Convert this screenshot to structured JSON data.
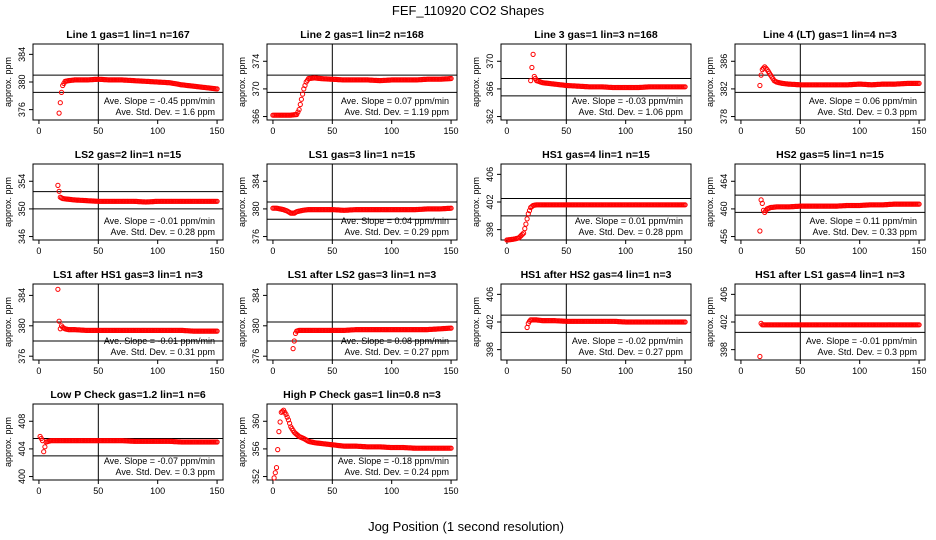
{
  "figure": {
    "title": "FEF_110920  CO2 Shapes",
    "xlabel": "Jog Position (1 second resolution)"
  },
  "colors": {
    "points": "#ff0000",
    "axes": "#000000"
  },
  "chart_data": [
    {
      "type": "scatter",
      "title": "Line 1 gas=1 lin=1 n=167",
      "ylabel": "approx. ppm",
      "xlim": [
        -5,
        155
      ],
      "ylim": [
        374.5,
        385.5
      ],
      "yticks": [
        376,
        380,
        384
      ],
      "xticks": [
        0,
        50,
        100,
        150
      ],
      "hlines": [
        378.5,
        381
      ],
      "vline": 50,
      "slope_text": "Ave. Slope = -0.45  ppm/min",
      "sd_text": "Ave. Std. Dev. = 1.6  ppm",
      "x": [
        17,
        18,
        19,
        20,
        22,
        25,
        30,
        40,
        50,
        60,
        70,
        80,
        90,
        100,
        110,
        120,
        130,
        140,
        150
      ],
      "y": [
        375.5,
        377,
        378.5,
        379.5,
        380.1,
        380.2,
        380.3,
        380.3,
        380.4,
        380.3,
        380.3,
        380.2,
        380.1,
        380.0,
        379.9,
        379.6,
        379.4,
        379.2,
        379.0
      ]
    },
    {
      "type": "scatter",
      "title": "Line 2 gas=1 lin=2 n=168",
      "ylabel": "approx. ppm",
      "xlim": [
        -5,
        155
      ],
      "ylim": [
        365.5,
        376.5
      ],
      "yticks": [
        366,
        370,
        374
      ],
      "xticks": [
        0,
        50,
        100,
        150
      ],
      "hlines": [
        369.5,
        372
      ],
      "vline": 50,
      "slope_text": "Ave. Slope = 0.07  ppm/min",
      "sd_text": "Ave. Std. Dev. = 1.19  ppm",
      "x": [
        0,
        5,
        10,
        15,
        20,
        22,
        24,
        26,
        28,
        30,
        35,
        40,
        50,
        60,
        70,
        80,
        90,
        100,
        110,
        120,
        130,
        140,
        150
      ],
      "y": [
        366.2,
        366.2,
        366.2,
        366.2,
        366.3,
        367,
        368.5,
        370,
        371,
        371.5,
        371.6,
        371.5,
        371.4,
        371.3,
        371.3,
        371.3,
        371.2,
        371.3,
        371.3,
        371.3,
        371.4,
        371.4,
        371.5
      ]
    },
    {
      "type": "scatter",
      "title": "Line 3 gas=1 lin=3 n=168",
      "ylabel": "approx. ppm",
      "xlim": [
        -5,
        155
      ],
      "ylim": [
        361.5,
        372.5
      ],
      "yticks": [
        362,
        366,
        370
      ],
      "xticks": [
        0,
        50,
        100,
        150
      ],
      "hlines": [
        365,
        367.5
      ],
      "vline": 50,
      "slope_text": "Ave. Slope = -0.03  ppm/min",
      "sd_text": "Ave. Std. Dev. = 1.06  ppm",
      "x": [
        20,
        22,
        23,
        25,
        30,
        40,
        50,
        60,
        70,
        80,
        90,
        100,
        110,
        120,
        130,
        140,
        150
      ],
      "y": [
        367.2,
        371,
        367.8,
        367.2,
        366.9,
        366.7,
        366.5,
        366.4,
        366.3,
        366.3,
        366.2,
        366.2,
        366.2,
        366.3,
        366.3,
        366.3,
        366.3
      ]
    },
    {
      "type": "scatter",
      "title": "Line 4 (LT) gas=1 lin=4 n=3",
      "ylabel": "approx. ppm",
      "xlim": [
        -5,
        155
      ],
      "ylim": [
        377.5,
        388.5
      ],
      "yticks": [
        378,
        382,
        386
      ],
      "xticks": [
        0,
        50,
        100,
        150
      ],
      "hlines": [
        381.5,
        384
      ],
      "vline": 50,
      "slope_text": "Ave. Slope = 0.06  ppm/min",
      "sd_text": "Ave. Std. Dev. = 0.3  ppm",
      "x": [
        16,
        17,
        18,
        20,
        22,
        25,
        28,
        30,
        35,
        40,
        50,
        60,
        70,
        80,
        90,
        100,
        110,
        120,
        130,
        140,
        150
      ],
      "y": [
        382.5,
        384,
        384.8,
        385.2,
        384.8,
        384,
        383.2,
        383,
        382.8,
        382.7,
        382.6,
        382.6,
        382.6,
        382.6,
        382.6,
        382.7,
        382.6,
        382.7,
        382.7,
        382.8,
        382.8
      ]
    },
    {
      "type": "scatter",
      "title": "LS2 gas=2 lin=1 n=15",
      "ylabel": "approx. ppm",
      "xlim": [
        -5,
        155
      ],
      "ylim": [
        345.5,
        356.5
      ],
      "yticks": [
        346,
        350,
        354
      ],
      "xticks": [
        0,
        50,
        100,
        150
      ],
      "hlines": [
        350,
        352.5
      ],
      "vline": 50,
      "slope_text": "Ave. Slope = -0.01  ppm/min",
      "sd_text": "Ave. Std. Dev. = 0.28  ppm",
      "x": [
        16,
        18,
        20,
        25,
        30,
        40,
        50,
        60,
        70,
        80,
        90,
        100,
        110,
        120,
        130,
        140,
        150
      ],
      "y": [
        353.4,
        351.7,
        351.5,
        351.4,
        351.3,
        351.2,
        351.1,
        351.1,
        351.1,
        351.1,
        351.0,
        351.1,
        351.1,
        351.1,
        351.1,
        351.1,
        351.1
      ]
    },
    {
      "type": "scatter",
      "title": "LS1 gas=3 lin=1 n=15",
      "ylabel": "approx. ppm",
      "xlim": [
        -5,
        155
      ],
      "ylim": [
        375.5,
        386.5
      ],
      "yticks": [
        376,
        380,
        384
      ],
      "xticks": [
        0,
        50,
        100,
        150
      ],
      "hlines": [
        378.5,
        381
      ],
      "vline": 50,
      "slope_text": "Ave. Slope = 0.04  ppm/min",
      "sd_text": "Ave. Std. Dev. = 0.29  ppm",
      "x": [
        0,
        3,
        6,
        9,
        12,
        15,
        18,
        20,
        25,
        30,
        40,
        50,
        60,
        70,
        80,
        90,
        100,
        110,
        120,
        130,
        140,
        150
      ],
      "y": [
        380.1,
        380.1,
        380.0,
        379.9,
        379.7,
        379.4,
        379.4,
        379.6,
        379.8,
        379.9,
        379.9,
        379.9,
        379.8,
        379.9,
        379.9,
        379.9,
        379.9,
        379.9,
        379.9,
        380.0,
        380.0,
        380.1
      ]
    },
    {
      "type": "scatter",
      "title": "HS1 gas=4 lin=1 n=15",
      "ylabel": "approx. ppm",
      "xlim": [
        -5,
        155
      ],
      "ylim": [
        396.5,
        407.5
      ],
      "yticks": [
        398,
        402,
        406
      ],
      "xticks": [
        0,
        50,
        100,
        150
      ],
      "hlines": [
        400,
        402.5
      ],
      "vline": 50,
      "slope_text": "Ave. Slope = 0.01  ppm/min",
      "sd_text": "Ave. Std. Dev. = 0.28  ppm",
      "x": [
        0,
        5,
        10,
        14,
        16,
        18,
        20,
        22,
        25,
        30,
        40,
        50,
        60,
        70,
        80,
        90,
        100,
        110,
        120,
        130,
        140,
        150
      ],
      "y": [
        396.5,
        396.6,
        396.8,
        397.5,
        398.8,
        400.3,
        401.2,
        401.5,
        401.6,
        401.6,
        401.6,
        401.6,
        401.6,
        401.6,
        401.6,
        401.6,
        401.6,
        401.6,
        401.6,
        401.6,
        401.6,
        401.6
      ]
    },
    {
      "type": "scatter",
      "title": "HS2 gas=5 lin=1 n=15",
      "ylabel": "approx. ppm",
      "xlim": [
        -5,
        155
      ],
      "ylim": [
        455.5,
        466.5
      ],
      "yticks": [
        456,
        460,
        464
      ],
      "xticks": [
        0,
        50,
        100,
        150
      ],
      "hlines": [
        459.5,
        462
      ],
      "vline": 50,
      "slope_text": "Ave. Slope = 0.11  ppm/min",
      "sd_text": "Ave. Std. Dev. = 0.33  ppm",
      "x": [
        16,
        17,
        18,
        19,
        20,
        22,
        25,
        30,
        40,
        50,
        60,
        70,
        80,
        90,
        100,
        110,
        120,
        130,
        140,
        150
      ],
      "y": [
        456.8,
        461.3,
        460.8,
        459.8,
        459.5,
        460.0,
        460.2,
        460.3,
        460.3,
        460.4,
        460.4,
        460.4,
        460.4,
        460.5,
        460.5,
        460.6,
        460.6,
        460.7,
        460.7,
        460.7
      ]
    },
    {
      "type": "scatter",
      "title": "LS1 after HS1 gas=3 lin=1 n=3",
      "ylabel": "approx. ppm",
      "xlim": [
        -5,
        155
      ],
      "ylim": [
        375.5,
        385.5
      ],
      "yticks": [
        376,
        380,
        384
      ],
      "xticks": [
        0,
        50,
        100,
        150
      ],
      "hlines": [
        378,
        380.5
      ],
      "vline": 50,
      "slope_text": "Ave. Slope = -0.01  ppm/min",
      "sd_text": "Ave. Std. Dev. = 0.31  ppm",
      "x": [
        16,
        17,
        18,
        19,
        20,
        22,
        25,
        30,
        40,
        50,
        60,
        70,
        80,
        90,
        100,
        110,
        120,
        130,
        140,
        150
      ],
      "y": [
        384.8,
        380.6,
        379.6,
        380.0,
        379.8,
        379.6,
        379.5,
        379.5,
        379.4,
        379.4,
        379.4,
        379.4,
        379.4,
        379.4,
        379.4,
        379.4,
        379.4,
        379.3,
        379.3,
        379.3
      ]
    },
    {
      "type": "scatter",
      "title": "LS1 after LS2 gas=3 lin=1 n=3",
      "ylabel": "approx. ppm",
      "xlim": [
        -5,
        155
      ],
      "ylim": [
        375.5,
        385.5
      ],
      "yticks": [
        376,
        380,
        384
      ],
      "xticks": [
        0,
        50,
        100,
        150
      ],
      "hlines": [
        378,
        380.5
      ],
      "vline": 50,
      "slope_text": "Ave. Slope = 0.08  ppm/min",
      "sd_text": "Ave. Std. Dev. = 0.27  ppm",
      "x": [
        17,
        19,
        20,
        22,
        25,
        30,
        40,
        50,
        60,
        70,
        80,
        90,
        100,
        110,
        120,
        130,
        140,
        150
      ],
      "y": [
        377.0,
        379.0,
        379.3,
        379.4,
        379.4,
        379.4,
        379.4,
        379.4,
        379.4,
        379.5,
        379.5,
        379.5,
        379.5,
        379.5,
        379.5,
        379.5,
        379.6,
        379.7
      ]
    },
    {
      "type": "scatter",
      "title": "HS1 after HS2 gas=4 lin=1 n=3",
      "ylabel": "approx. ppm",
      "xlim": [
        -5,
        155
      ],
      "ylim": [
        396.5,
        407.5
      ],
      "yticks": [
        398,
        402,
        406
      ],
      "xticks": [
        0,
        50,
        100,
        150
      ],
      "hlines": [
        400.5,
        403
      ],
      "vline": 50,
      "slope_text": "Ave. Slope = -0.02  ppm/min",
      "sd_text": "Ave. Std. Dev. = 0.27  ppm",
      "x": [
        17,
        18,
        19,
        20,
        22,
        25,
        30,
        40,
        50,
        60,
        70,
        80,
        90,
        100,
        110,
        120,
        130,
        140,
        150
      ],
      "y": [
        401.2,
        401.8,
        402.1,
        402.3,
        402.3,
        402.3,
        402.2,
        402.2,
        402.1,
        402.1,
        402.1,
        402.1,
        402.1,
        402.0,
        402.0,
        402.0,
        402.0,
        402.0,
        402.0
      ]
    },
    {
      "type": "scatter",
      "title": "HS1 after LS1 gas=4 lin=1 n=3",
      "ylabel": "approx. ppm",
      "xlim": [
        -5,
        155
      ],
      "ylim": [
        396.5,
        407.5
      ],
      "yticks": [
        398,
        402,
        406
      ],
      "xticks": [
        0,
        50,
        100,
        150
      ],
      "hlines": [
        400.5,
        403
      ],
      "vline": 50,
      "slope_text": "Ave. Slope = -0.01  ppm/min",
      "sd_text": "Ave. Std. Dev. = 0.3  ppm",
      "x": [
        16,
        17,
        18,
        20,
        22,
        25,
        30,
        40,
        50,
        60,
        70,
        80,
        90,
        100,
        110,
        120,
        130,
        140,
        150
      ],
      "y": [
        397.0,
        401.8,
        401.6,
        401.6,
        401.6,
        401.6,
        401.6,
        401.6,
        401.6,
        401.6,
        401.6,
        401.6,
        401.6,
        401.6,
        401.6,
        401.6,
        401.6,
        401.6,
        401.6
      ]
    },
    {
      "type": "scatter",
      "title": "Low P Check gas=1.2 lin=1 n=6",
      "ylabel": "approx. ppm",
      "xlim": [
        -5,
        155
      ],
      "ylim": [
        399.5,
        410.5
      ],
      "yticks": [
        400,
        404,
        408
      ],
      "xticks": [
        0,
        50,
        100,
        150
      ],
      "hlines": [
        403,
        405.5
      ],
      "vline": 50,
      "slope_text": "Ave. Slope = -0.07  ppm/min",
      "sd_text": "Ave. Std. Dev. = 0.3  ppm",
      "x": [
        1,
        3,
        4,
        5,
        6,
        8,
        10,
        15,
        20,
        30,
        40,
        50,
        60,
        70,
        80,
        90,
        100,
        110,
        120,
        130,
        140,
        150
      ],
      "y": [
        405.8,
        405.2,
        403.6,
        404.3,
        405.0,
        405.1,
        405.2,
        405.2,
        405.2,
        405.2,
        405.2,
        405.2,
        405.2,
        405.2,
        405.1,
        405.1,
        405.1,
        405.1,
        405.0,
        405.0,
        405.0,
        405.0
      ]
    },
    {
      "type": "scatter",
      "title": "High P Check gas=1 lin=0.8 n=3",
      "ylabel": "approx. ppm",
      "xlim": [
        -5,
        155
      ],
      "ylim": [
        351.5,
        362.5
      ],
      "yticks": [
        352,
        356,
        360
      ],
      "xticks": [
        0,
        50,
        100,
        150
      ],
      "hlines": [
        355,
        357.5
      ],
      "vline": 50,
      "slope_text": "Ave. Slope = -0.18  ppm/min",
      "sd_text": "Ave. Std. Dev. = 0.24  ppm",
      "x": [
        1,
        3,
        5,
        7,
        9,
        11,
        13,
        15,
        18,
        22,
        26,
        30,
        35,
        40,
        50,
        60,
        70,
        80,
        90,
        100,
        110,
        120,
        130,
        140,
        150
      ],
      "y": [
        351.8,
        353.3,
        358.5,
        361.3,
        361.6,
        361.0,
        360.2,
        359.2,
        358.4,
        357.8,
        357.5,
        357.1,
        356.9,
        356.8,
        356.6,
        356.4,
        356.4,
        356.3,
        356.3,
        356.2,
        356.2,
        356.1,
        356.1,
        356.1,
        356.1
      ]
    }
  ]
}
